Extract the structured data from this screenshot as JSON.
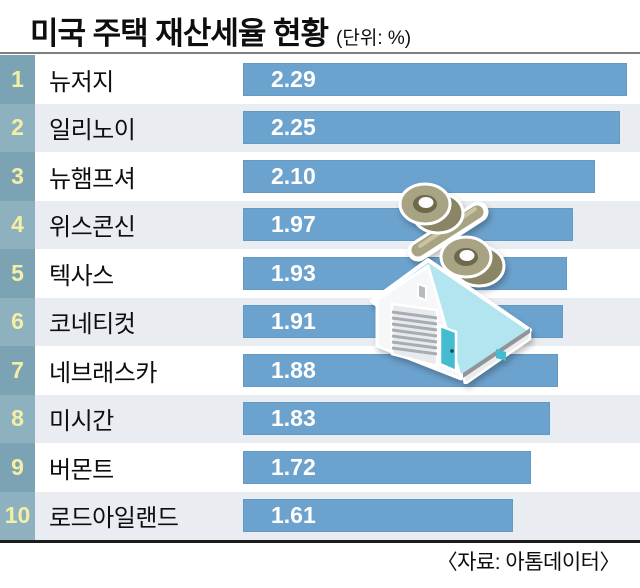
{
  "header": {
    "title": "미국 주택 재산세율 현황",
    "unit": "(단위: %)"
  },
  "footer": {
    "source": "〈자료: 아톰데이터〉"
  },
  "colors": {
    "bar": "#6CA2CE",
    "bar_edge": "#629ac6",
    "rank_odd": "#7CA3B3",
    "rank_even": "#8DB1BE",
    "rank_text": "#F3F0A4",
    "stripe": "#E9EDF2",
    "title": "#0E0E0E",
    "value_text": "#FFFFFF",
    "rule_top": "#7F7F7F",
    "rule_bottom": "#1C1C1C",
    "roof": "#B3E5F0",
    "wall": "#F6F7F8",
    "teal_accent": "#44BCCF",
    "khaki": "#A8A382"
  },
  "chart_data": {
    "type": "bar",
    "orientation": "horizontal",
    "title": "미국 주택 재산세율 현황",
    "unit": "%",
    "source": "아톰데이터",
    "categories": [
      "뉴저지",
      "일리노이",
      "뉴햄프셔",
      "위스콘신",
      "텍사스",
      "코네티컷",
      "네브래스카",
      "미시간",
      "버몬트",
      "로드아일랜드"
    ],
    "ranks": [
      1,
      2,
      3,
      4,
      5,
      6,
      7,
      8,
      9,
      10
    ],
    "values": [
      2.29,
      2.25,
      2.1,
      1.97,
      1.93,
      1.91,
      1.88,
      1.83,
      1.72,
      1.61
    ],
    "value_labels": [
      "2.29",
      "2.25",
      "2.10",
      "1.97",
      "1.93",
      "1.91",
      "1.88",
      "1.83",
      "1.72",
      "1.61"
    ],
    "xlim": [
      0,
      2.368
    ],
    "grid": false,
    "legend": false
  }
}
